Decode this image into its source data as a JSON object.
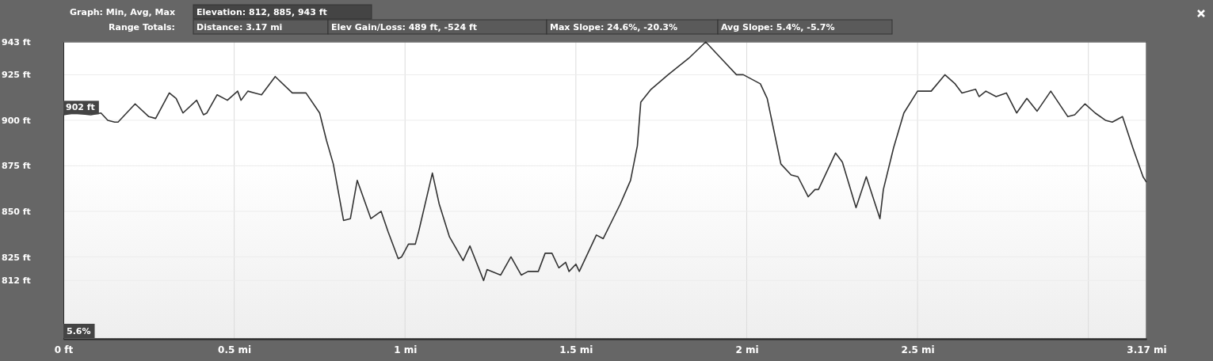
{
  "chart_data": {
    "type": "line",
    "annotations": [
      "Graph: Min, Avg, Max",
      "Elevation: 812, 885, 943 ft",
      "Range Totals:",
      "Distance: 3.17 mi",
      "Elev Gain/Loss: 489 ft, -524 ft",
      "Max Slope: 24.6%, -20.3%",
      "Avg Slope: 5.4%, -5.7%",
      {
        "text": "902 ft",
        "x": 0,
        "y": 902
      },
      "5.6%"
    ],
    "x": [
      0,
      0.03,
      0.08,
      0.11,
      0.13,
      0.15,
      0.16,
      0.21,
      0.25,
      0.27,
      0.31,
      0.33,
      0.35,
      0.39,
      0.41,
      0.42,
      0.45,
      0.48,
      0.51,
      0.52,
      0.54,
      0.56,
      0.58,
      0.62,
      0.67,
      0.71,
      0.75,
      0.77,
      0.79,
      0.82,
      0.84,
      0.86,
      0.9,
      0.93,
      0.95,
      0.98,
      0.99,
      1.01,
      1.03,
      1.04,
      1.08,
      1.1,
      1.13,
      1.17,
      1.19,
      1.23,
      1.24,
      1.28,
      1.31,
      1.34,
      1.36,
      1.39,
      1.41,
      1.43,
      1.45,
      1.47,
      1.48,
      1.5,
      1.51,
      1.56,
      1.58,
      1.63,
      1.66,
      1.68,
      1.69,
      1.72,
      1.77,
      1.83,
      1.88,
      1.93,
      1.97,
      1.99,
      2.04,
      2.06,
      2.08,
      2.1,
      2.13,
      2.15,
      2.18,
      2.2,
      2.21,
      2.26,
      2.28,
      2.32,
      2.35,
      2.39,
      2.4,
      2.43,
      2.46,
      2.5,
      2.54,
      2.58,
      2.61,
      2.63,
      2.67,
      2.68,
      2.7,
      2.73,
      2.76,
      2.79,
      2.82,
      2.85,
      2.89,
      2.94,
      2.96,
      2.99,
      3.02,
      3.05,
      3.07,
      3.1,
      3.13,
      3.16,
      3.17
    ],
    "series": [
      {
        "color": "#333333",
        "values": [
          903,
          904,
          903,
          904,
          900,
          899,
          899,
          909,
          902,
          901,
          915,
          912,
          904,
          911,
          903,
          904,
          914,
          911,
          916,
          911,
          916,
          915,
          914,
          924,
          915,
          915,
          904,
          889,
          876,
          845,
          846,
          867,
          846,
          850,
          839,
          824,
          825,
          832,
          832,
          839,
          871,
          854,
          836,
          823,
          831,
          812,
          818,
          815,
          825,
          815,
          817,
          817,
          827,
          827,
          819,
          822,
          817,
          821,
          817,
          837,
          835,
          854,
          867,
          886,
          910,
          917,
          925,
          934,
          943,
          933,
          925,
          925,
          920,
          912,
          894,
          876,
          870,
          869,
          858,
          862,
          862,
          882,
          877,
          852,
          869,
          846,
          862,
          885,
          904,
          916,
          916,
          925,
          920,
          915,
          917,
          913,
          916,
          913,
          915,
          904,
          912,
          905,
          916,
          902,
          903,
          909,
          904,
          900,
          899,
          902,
          885,
          869,
          866
        ]
      }
    ],
    "xlim": [
      0,
      3.17
    ],
    "xticks": [
      {
        "value": 0,
        "label": "0 ft"
      },
      {
        "value": 0.5,
        "label": "0.5 mi"
      },
      {
        "value": 1,
        "label": "1 mi"
      },
      {
        "value": 1.5,
        "label": "1.5 mi"
      },
      {
        "value": 2,
        "label": "2 mi"
      },
      {
        "value": 2.5,
        "label": "2.5 mi"
      },
      {
        "value": 3,
        "label": null
      },
      {
        "value": 3.17,
        "label": "3.17 mi"
      }
    ],
    "ylim": [
      780,
      943
    ],
    "yticks": [
      {
        "value": 812,
        "label": "812 ft"
      },
      {
        "value": 825,
        "label": "825 ft"
      },
      {
        "value": 850,
        "label": "850 ft"
      },
      {
        "value": 875,
        "label": "875 ft"
      },
      {
        "value": 900,
        "label": "900 ft"
      },
      {
        "value": 925,
        "label": "925 ft"
      },
      {
        "value": 943,
        "label": "943 ft"
      }
    ],
    "grid": true,
    "marker": "none",
    "line_style": "solid"
  }
}
